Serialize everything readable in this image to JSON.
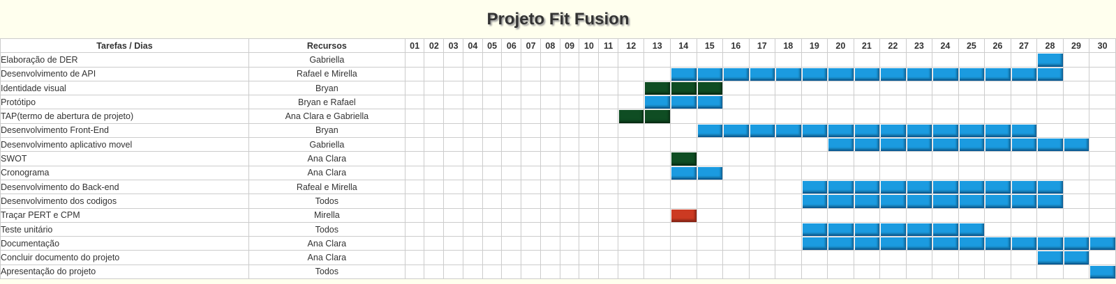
{
  "page": {
    "title": "Projeto Fit Fusion"
  },
  "table": {
    "headers": {
      "task": "Tarefas / Dias",
      "resources": "Recursos"
    },
    "days": [
      "01",
      "02",
      "03",
      "04",
      "05",
      "06",
      "07",
      "08",
      "09",
      "10",
      "11",
      "12",
      "13",
      "14",
      "15",
      "16",
      "17",
      "18",
      "19",
      "20",
      "21",
      "22",
      "23",
      "24",
      "25",
      "26",
      "27",
      "28",
      "29",
      "30"
    ],
    "colors": {
      "blue": "#1b9be0",
      "green": "#0f4d23",
      "red": "#cc3a22"
    },
    "rows": [
      {
        "task": "Elaboração de DER",
        "resource": "Gabriella",
        "segments": [
          {
            "start": 28,
            "end": 28,
            "color": "blue"
          }
        ]
      },
      {
        "task": "Desenvolvimento de API",
        "resource": "Rafael e Mirella",
        "segments": [
          {
            "start": 14,
            "end": 28,
            "color": "blue"
          }
        ]
      },
      {
        "task": "Identidade visual",
        "resource": "Bryan",
        "segments": [
          {
            "start": 13,
            "end": 15,
            "color": "green"
          }
        ]
      },
      {
        "task": "Protótipo",
        "resource": "Bryan e Rafael",
        "segments": [
          {
            "start": 13,
            "end": 15,
            "color": "blue"
          }
        ]
      },
      {
        "task": "TAP(termo de abertura de projeto)",
        "resource": "Ana Clara e Gabriella",
        "segments": [
          {
            "start": 12,
            "end": 13,
            "color": "green"
          }
        ]
      },
      {
        "task": "Desenvolvimento Front-End",
        "resource": "Bryan",
        "segments": [
          {
            "start": 15,
            "end": 27,
            "color": "blue"
          }
        ]
      },
      {
        "task": "Desenvolvimento aplicativo movel",
        "resource": "Gabriella",
        "segments": [
          {
            "start": 20,
            "end": 29,
            "color": "blue"
          }
        ]
      },
      {
        "task": "SWOT",
        "resource": "Ana Clara",
        "segments": [
          {
            "start": 14,
            "end": 14,
            "color": "green"
          }
        ]
      },
      {
        "task": "Cronograma",
        "resource": "Ana Clara",
        "segments": [
          {
            "start": 14,
            "end": 15,
            "color": "blue"
          }
        ]
      },
      {
        "task": "Desenvolvimento do Back-end",
        "resource": "Rafeal e Mirella",
        "segments": [
          {
            "start": 19,
            "end": 28,
            "color": "blue"
          }
        ]
      },
      {
        "task": "Desenvolvimento dos codigos",
        "resource": "Todos",
        "segments": [
          {
            "start": 19,
            "end": 28,
            "color": "blue"
          }
        ]
      },
      {
        "task": "Traçar PERT e CPM",
        "resource": "Mirella",
        "segments": [
          {
            "start": 14,
            "end": 14,
            "color": "red"
          }
        ]
      },
      {
        "task": "Teste unitário",
        "resource": "Todos",
        "segments": [
          {
            "start": 19,
            "end": 25,
            "color": "blue"
          }
        ]
      },
      {
        "task": "Documentação",
        "resource": "Ana Clara",
        "segments": [
          {
            "start": 19,
            "end": 30,
            "color": "blue"
          }
        ]
      },
      {
        "task": "Concluir documento do projeto",
        "resource": "Ana Clara",
        "segments": [
          {
            "start": 28,
            "end": 29,
            "color": "blue"
          }
        ]
      },
      {
        "task": "Apresentação do projeto",
        "resource": "Todos",
        "segments": [
          {
            "start": 30,
            "end": 30,
            "color": "blue"
          }
        ]
      }
    ]
  }
}
